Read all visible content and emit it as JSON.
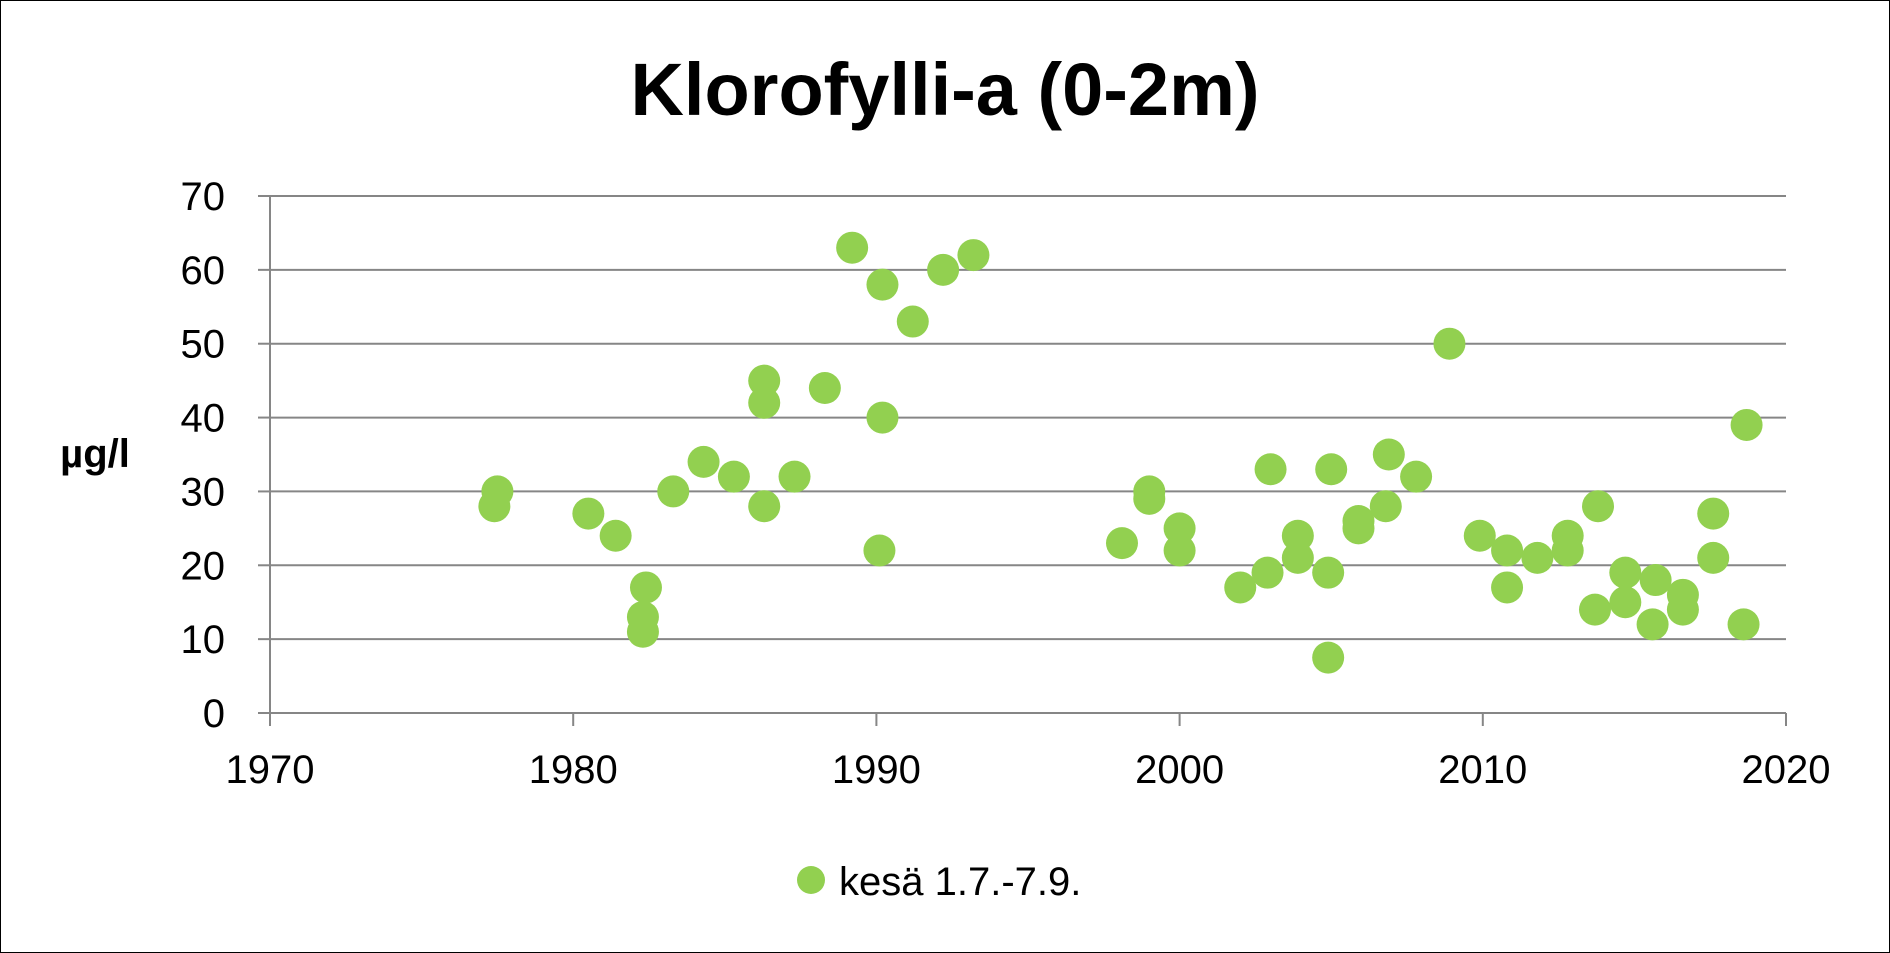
{
  "chart_data": {
    "type": "scatter",
    "title": "Klorofylli-a (0-2m)",
    "xlabel": "",
    "ylabel": "µg/l",
    "xlim": [
      1970,
      2020
    ],
    "ylim": [
      0,
      70
    ],
    "x_ticks": [
      "1970",
      "1980",
      "1990",
      "2000",
      "2010",
      "2020"
    ],
    "y_ticks": [
      "0",
      "10",
      "20",
      "30",
      "40",
      "50",
      "60",
      "70"
    ],
    "grid": "horizontal",
    "legend_position": "bottom",
    "colors": {
      "series": "#92d050",
      "grid": "#868686",
      "axis": "#868686"
    },
    "series": [
      {
        "name": "kesä 1.7.-7.9.",
        "points": [
          [
            1977.4,
            28
          ],
          [
            1977.5,
            30
          ],
          [
            1980.5,
            27
          ],
          [
            1981.4,
            24
          ],
          [
            1982.3,
            11
          ],
          [
            1982.3,
            13
          ],
          [
            1982.4,
            17
          ],
          [
            1983.3,
            30
          ],
          [
            1984.3,
            34
          ],
          [
            1985.3,
            32
          ],
          [
            1986.3,
            28
          ],
          [
            1986.3,
            45
          ],
          [
            1986.3,
            42
          ],
          [
            1987.3,
            32
          ],
          [
            1988.3,
            44
          ],
          [
            1989.2,
            63
          ],
          [
            1990.1,
            22
          ],
          [
            1990.2,
            58
          ],
          [
            1990.2,
            40
          ],
          [
            1991.2,
            53
          ],
          [
            1992.2,
            60
          ],
          [
            1993.2,
            62
          ],
          [
            1998.1,
            23
          ],
          [
            1999.0,
            29
          ],
          [
            1999.0,
            30
          ],
          [
            2000.0,
            25
          ],
          [
            2000.0,
            22
          ],
          [
            2002.0,
            17
          ],
          [
            2002.9,
            19
          ],
          [
            2003.0,
            33
          ],
          [
            2003.9,
            24
          ],
          [
            2003.9,
            21
          ],
          [
            2004.9,
            7.5
          ],
          [
            2004.9,
            19
          ],
          [
            2005.0,
            33
          ],
          [
            2005.9,
            25
          ],
          [
            2005.9,
            26
          ],
          [
            2006.8,
            28
          ],
          [
            2006.9,
            35
          ],
          [
            2007.8,
            32
          ],
          [
            2008.9,
            50
          ],
          [
            2009.9,
            24
          ],
          [
            2010.8,
            17
          ],
          [
            2010.8,
            22
          ],
          [
            2011.8,
            21
          ],
          [
            2012.8,
            24
          ],
          [
            2012.8,
            22
          ],
          [
            2013.7,
            14
          ],
          [
            2013.8,
            28
          ],
          [
            2014.7,
            19
          ],
          [
            2014.7,
            15
          ],
          [
            2015.6,
            12
          ],
          [
            2015.7,
            18
          ],
          [
            2016.6,
            16
          ],
          [
            2016.6,
            14
          ],
          [
            2017.6,
            21
          ],
          [
            2017.6,
            27
          ],
          [
            2018.6,
            12
          ],
          [
            2018.7,
            39
          ]
        ]
      }
    ]
  }
}
